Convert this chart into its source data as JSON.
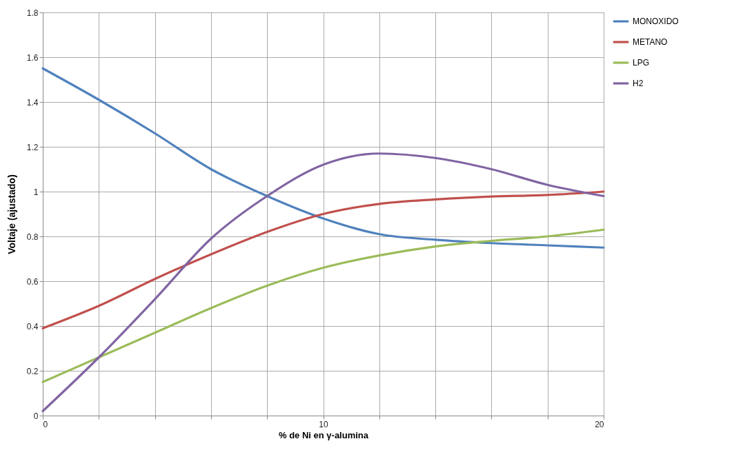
{
  "chart_data": {
    "type": "line",
    "xlabel": "% de Ni en γ-alumina",
    "ylabel": "Voltaje (ajustado)",
    "x": [
      0,
      2,
      4,
      6,
      8,
      10,
      12,
      14,
      16,
      18,
      20
    ],
    "series": [
      {
        "name": "MONOXIDO",
        "color": "#4f81bd",
        "values": [
          1.55,
          1.41,
          1.26,
          1.1,
          0.98,
          0.88,
          0.81,
          0.785,
          0.77,
          0.76,
          0.75
        ]
      },
      {
        "name": "METANO",
        "color": "#c0504d",
        "values": [
          0.39,
          0.49,
          0.61,
          0.72,
          0.82,
          0.9,
          0.945,
          0.965,
          0.978,
          0.985,
          1.0
        ]
      },
      {
        "name": "LPG",
        "color": "#9bbb59",
        "values": [
          0.15,
          0.26,
          0.37,
          0.48,
          0.58,
          0.66,
          0.715,
          0.755,
          0.78,
          0.8,
          0.83
        ]
      },
      {
        "name": "H2",
        "color": "#8064a2",
        "values": [
          0.02,
          0.26,
          0.52,
          0.79,
          0.98,
          1.12,
          1.17,
          1.15,
          1.1,
          1.03,
          0.98
        ]
      }
    ],
    "xlim": [
      0,
      20
    ],
    "xticks": [
      0,
      {
        "value": 2,
        "label": null
      },
      {
        "value": 4,
        "label": null
      },
      {
        "value": 6,
        "label": null
      },
      {
        "value": 8,
        "label": null
      },
      10,
      {
        "value": 12,
        "label": null
      },
      {
        "value": 14,
        "label": null
      },
      {
        "value": 16,
        "label": null
      },
      {
        "value": 18,
        "label": null
      },
      20
    ],
    "ylim": [
      0,
      1.8
    ],
    "yticks": [
      0,
      0.2,
      0.4,
      0.6,
      0.8,
      1,
      1.2,
      1.4,
      1.6,
      1.8
    ],
    "grid": true,
    "legend": "right",
    "marker": "none",
    "line_style": "solid"
  }
}
